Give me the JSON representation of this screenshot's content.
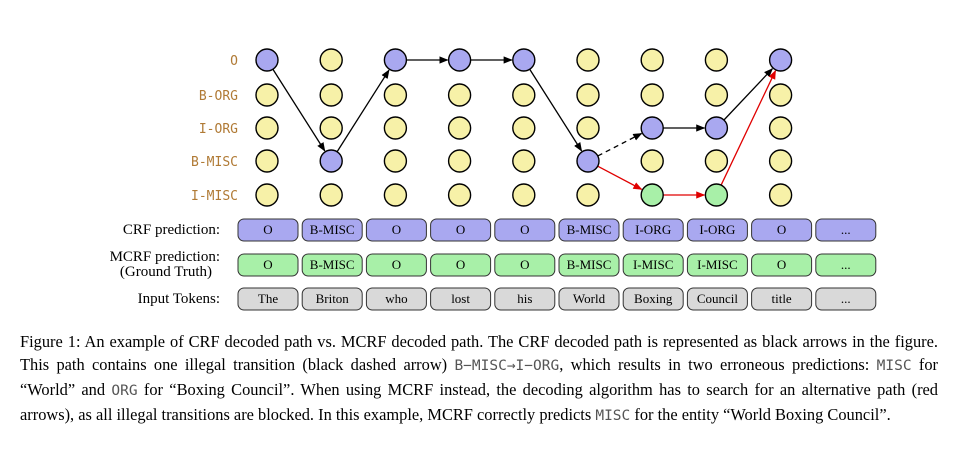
{
  "tag_labels": [
    "O",
    "B-ORG",
    "I-ORG",
    "B-MISC",
    "I-MISC"
  ],
  "row_labels": {
    "crf": "CRF prediction:",
    "mcrf_line1": "MCRF prediction:",
    "mcrf_line2": "(Ground Truth)",
    "tokens": "Input Tokens:"
  },
  "crf_predictions": [
    "O",
    "B-MISC",
    "O",
    "O",
    "O",
    "B-MISC",
    "I-ORG",
    "I-ORG",
    "O",
    "..."
  ],
  "mcrf_predictions": [
    "O",
    "B-MISC",
    "O",
    "O",
    "O",
    "B-MISC",
    "I-MISC",
    "I-MISC",
    "O",
    "..."
  ],
  "input_tokens": [
    "The",
    "Briton",
    "who",
    "lost",
    "his",
    "World",
    "Boxing",
    "Council",
    "title",
    "..."
  ],
  "crf_path": [
    0,
    3,
    0,
    0,
    0,
    3,
    2,
    2,
    0
  ],
  "mcrf_path": [
    0,
    3,
    0,
    0,
    0,
    3,
    4,
    4,
    0
  ],
  "colors": {
    "node_default": "#f7f1a8",
    "node_crf": "#a9a8f0",
    "node_mcrf": "#a8f0a8",
    "crf_box": "#a9a8f0",
    "mcrf_box": "#a8f0a8",
    "token_box": "#d9d9d9",
    "crf_arrow": "#000000",
    "mcrf_arrow": "#e00000",
    "label_tag": "#b07a35"
  },
  "caption": {
    "p1": "Figure 1: An example of CRF decoded path vs.  MCRF decoded path.  The CRF decoded path is represented as black arrows in the figure.  This path contains one illegal transition (black dashed arrow) ",
    "m1": "B−MISC→I−ORG",
    "p2": ", which results in two erroneous predictions: ",
    "m2": "MISC",
    "p3": " for “World” and ",
    "m3": "ORG",
    "p4": " for “Boxing Council”. When using MCRF instead, the decoding algorithm has to search for an alternative path (red arrows), as all illegal transitions are blocked. In this example, MCRF correctly predicts ",
    "m4": "MISC",
    "p5": " for the entity “World Boxing Council”."
  }
}
